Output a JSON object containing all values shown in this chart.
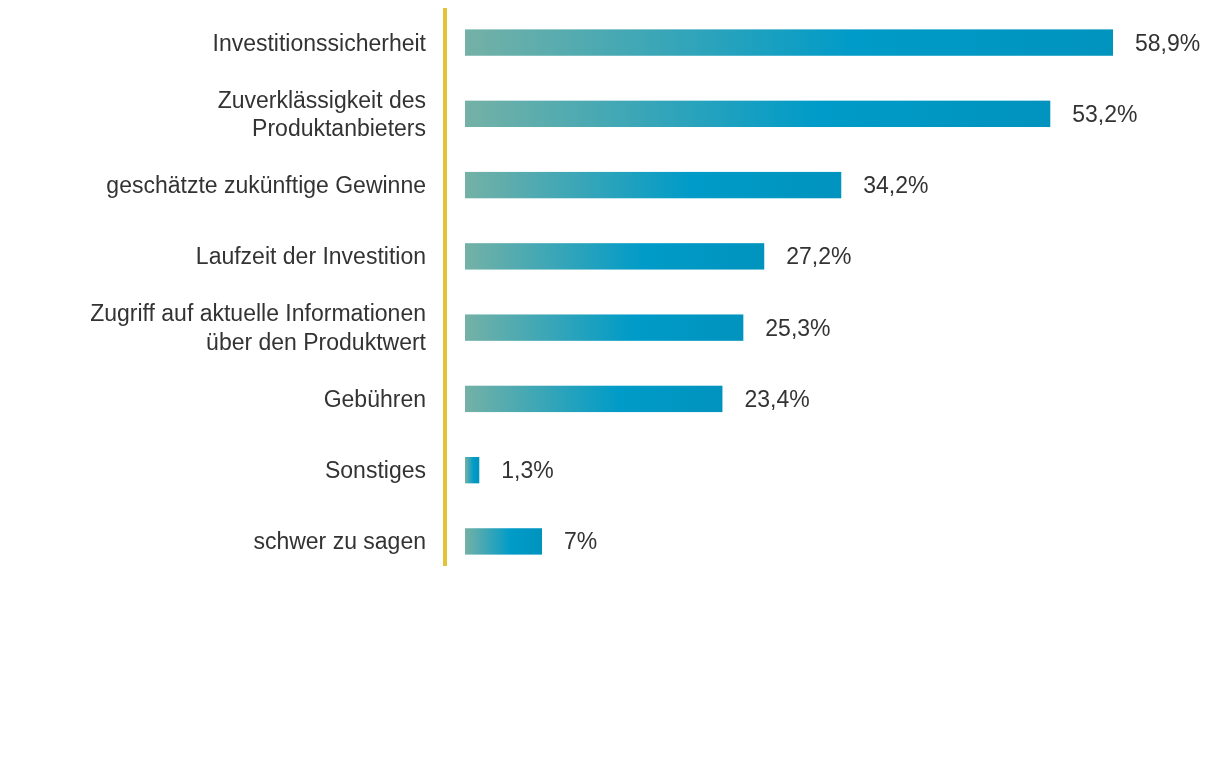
{
  "chart_data": {
    "type": "bar",
    "orientation": "horizontal",
    "categories": [
      "Investitionssicherheit",
      "Zuverklässigkeit des Produktanbieters",
      "geschätzte zukünftige Gewinne",
      "Laufzeit der Investition",
      "Zugriff auf aktuelle Informationen über den Produktwert",
      "Gebühren",
      "Sonstiges",
      "schwer zu sagen"
    ],
    "series": [
      {
        "color": "#009bc8",
        "values": [
          58.9,
          53.2,
          34.2,
          27.2,
          25.3,
          23.4,
          1.3,
          7
        ],
        "value_labels": [
          "58,9%",
          "53,2%",
          "34,2%",
          "27,2%",
          "25,3%",
          "23,4%",
          "1,3%",
          "7%"
        ]
      }
    ]
  }
}
